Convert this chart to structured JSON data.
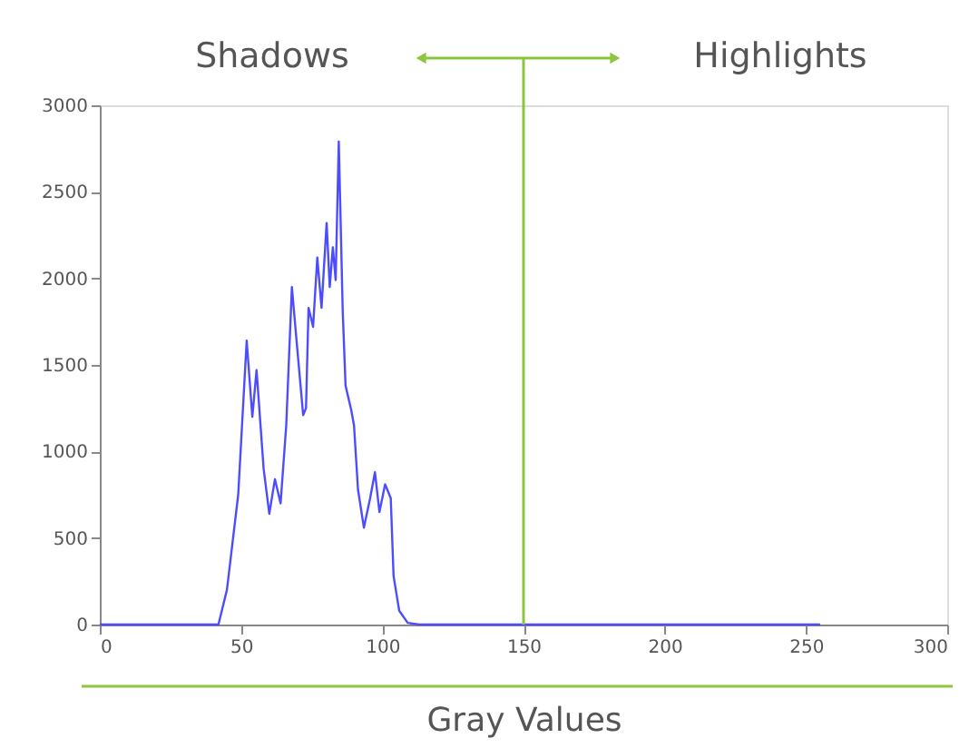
{
  "chart_data": {
    "type": "line",
    "xlabel": "Gray Values",
    "annotations": [
      "Shadows",
      "Highlights"
    ],
    "x": [
      0,
      42,
      45,
      49,
      52,
      54,
      55.5,
      58,
      60,
      62,
      64,
      66,
      68,
      69.6,
      72,
      73,
      73.9,
      75.5,
      77,
      78.5,
      80.3,
      81.4,
      82.5,
      83.5,
      84.6,
      86,
      87,
      89,
      90,
      91.4,
      93.5,
      95.7,
      97.4,
      99,
      101,
      103,
      104,
      106,
      109,
      113,
      255
    ],
    "series": [
      {
        "color": "#4d4dff",
        "values": [
          0,
          0,
          200,
          750,
          1640,
          1200,
          1470,
          900,
          640,
          840,
          700,
          1150,
          1950,
          1650,
          1210,
          1250,
          1830,
          1720,
          2120,
          1830,
          2320,
          1950,
          2180,
          1990,
          2790,
          1810,
          1380,
          1240,
          1150,
          780,
          560,
          730,
          880,
          650,
          810,
          730,
          280,
          80,
          10,
          0,
          0
        ]
      }
    ],
    "xlim": [
      0,
      300
    ],
    "ylim": [
      0,
      3000
    ],
    "xticks": [
      0,
      50,
      100,
      150,
      200,
      250,
      300
    ],
    "yticks": [
      0,
      500,
      1000,
      1500,
      2000,
      2500,
      3000
    ],
    "ref_lines": [
      {
        "axis": "x",
        "value": 150,
        "color": "#8cc63f"
      }
    ],
    "grid": false,
    "marker": "none",
    "line_style": "solid"
  }
}
